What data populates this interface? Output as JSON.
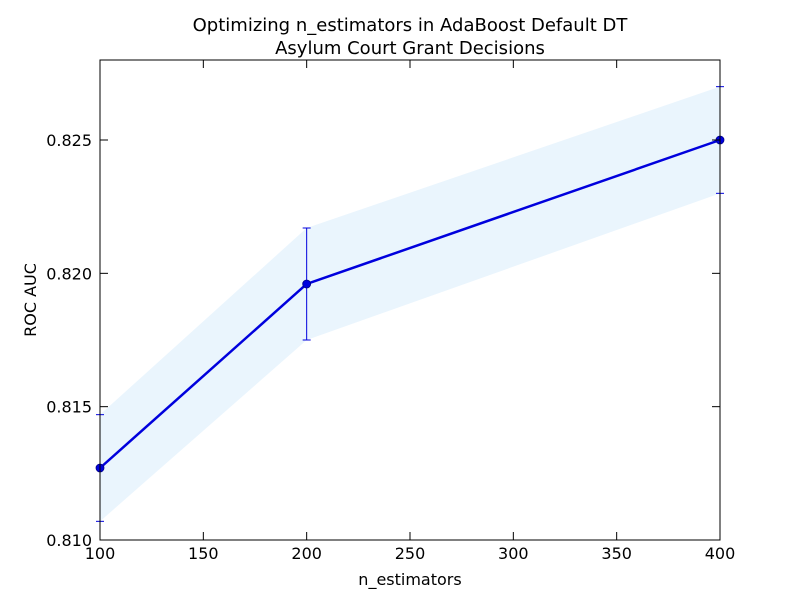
{
  "chart_data": {
    "type": "line",
    "title": "Optimizing n_estimators in AdaBoost Default DT",
    "subtitle": "Asylum Court Grant Decisions",
    "xlabel": "n_estimators",
    "ylabel": "ROC AUC",
    "xlim": [
      100,
      400
    ],
    "ylim": [
      0.81,
      0.828
    ],
    "xticks": [
      100,
      150,
      200,
      250,
      300,
      350,
      400
    ],
    "xtick_labels": [
      "100",
      "150",
      "200",
      "250",
      "300",
      "350",
      "400"
    ],
    "yticks": [
      0.81,
      0.815,
      0.82,
      0.825
    ],
    "ytick_labels": [
      "0.810",
      "0.815",
      "0.820",
      "0.825"
    ],
    "grid": false,
    "series": [
      {
        "x": [
          100,
          200,
          400
        ],
        "y": [
          0.8127,
          0.8196,
          0.825
        ],
        "error": [
          0.002,
          0.0021,
          0.002
        ],
        "color": "#0000dd",
        "band_color": "#eaf5fd"
      }
    ]
  }
}
